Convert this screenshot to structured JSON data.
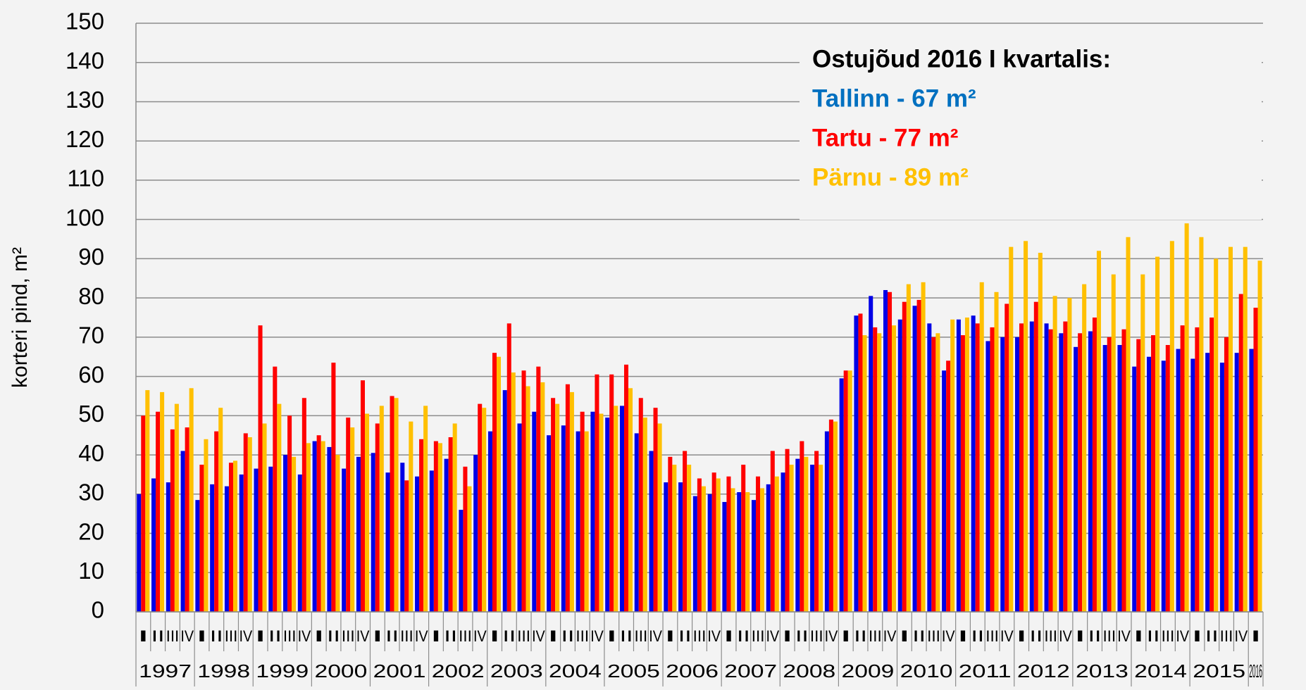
{
  "chart_data": {
    "type": "bar",
    "y_label": "korteri pind, m²",
    "annotations": [
      "Ostujõud 2016 I kvartalis:",
      "Tallinn - 67 m²",
      "Tartu - 77 m²",
      "Pärnu - 89 m²"
    ],
    "annotation_colors": [
      "#000000",
      "#0070c0",
      "#ff0000",
      "#ffc000"
    ],
    "categories": [
      "I",
      "II",
      "III",
      "IV",
      "I",
      "II",
      "III",
      "IV",
      "I",
      "II",
      "III",
      "IV",
      "I",
      "II",
      "III",
      "IV",
      "I",
      "II",
      "III",
      "IV",
      "I",
      "II",
      "III",
      "IV",
      "I",
      "II",
      "III",
      "IV",
      "I",
      "II",
      "III",
      "IV",
      "I",
      "II",
      "III",
      "IV",
      "I",
      "II",
      "III",
      "IV",
      "I",
      "II",
      "III",
      "IV",
      "I",
      "II",
      "III",
      "IV",
      "I",
      "II",
      "III",
      "IV",
      "I",
      "II",
      "III",
      "IV",
      "I",
      "II",
      "III",
      "IV",
      "I",
      "II",
      "III",
      "IV",
      "I",
      "II",
      "III",
      "IV",
      "I",
      "II",
      "III",
      "IV",
      "I",
      "II",
      "III",
      "IV",
      "I"
    ],
    "years": [
      "1997",
      "1998",
      "1999",
      "2000",
      "2001",
      "2002",
      "2003",
      "2004",
      "2005",
      "2006",
      "2007",
      "2008",
      "2009",
      "2010",
      "2011",
      "2012",
      "2013",
      "2014",
      "2015",
      "2016"
    ],
    "series": [
      {
        "color": "#0000e6",
        "values": [
          30,
          34,
          33,
          41,
          28.5,
          32.5,
          32,
          35,
          36.5,
          37,
          40,
          35,
          43.5,
          42,
          36.5,
          39.5,
          40.5,
          35.5,
          38,
          34.5,
          36,
          39,
          26,
          40,
          46,
          56.5,
          48,
          51,
          45,
          47.5,
          46,
          51,
          49.5,
          52.5,
          45.5,
          41,
          33,
          33,
          29.5,
          30,
          28,
          30.5,
          28.5,
          32.5,
          35.5,
          39,
          37.5,
          46,
          59.5,
          75.5,
          80.5,
          82,
          74.5,
          78,
          73.5,
          61.5,
          74.5,
          75.5,
          69,
          70,
          70,
          74,
          73.5,
          71,
          67.5,
          71.5,
          68,
          68,
          62.5,
          65,
          64,
          67,
          64.5,
          66,
          63.5,
          66,
          67
        ]
      },
      {
        "color": "#ff0000",
        "values": [
          50,
          51,
          46.5,
          47,
          37.5,
          46,
          38,
          45.5,
          73,
          62.5,
          50,
          54.5,
          45,
          63.5,
          49.5,
          59,
          48,
          55,
          33.5,
          44,
          43.5,
          44.5,
          37,
          53,
          66,
          73.5,
          61.5,
          62.5,
          54.5,
          58,
          51,
          60.5,
          60.5,
          63,
          54.5,
          52,
          39.5,
          41,
          34,
          35.5,
          34.5,
          37.5,
          34.5,
          41,
          41.5,
          43.5,
          41,
          49,
          61.5,
          76,
          72.5,
          81.5,
          79,
          79.5,
          70,
          64,
          70.5,
          73.5,
          72.5,
          78.5,
          73.5,
          79,
          72,
          74,
          71,
          75,
          70,
          72,
          69.5,
          70.5,
          68,
          73,
          72.5,
          75,
          70,
          81,
          77.5
        ]
      },
      {
        "color": "#ffc000",
        "values": [
          56.5,
          56,
          53,
          57,
          44,
          52,
          38.5,
          44.5,
          48,
          53,
          39.5,
          43,
          43.5,
          40,
          47,
          50.5,
          52.5,
          54.5,
          48.5,
          52.5,
          43,
          48,
          32,
          52,
          65,
          61,
          57.5,
          58.5,
          53,
          56,
          46,
          50.5,
          52.5,
          57,
          49.5,
          48,
          37.5,
          37.5,
          32,
          34,
          31.5,
          30.5,
          31.5,
          34.5,
          37.5,
          39.5,
          37.5,
          48.5,
          61.5,
          70.5,
          71,
          73,
          83.5,
          84,
          71,
          74.5,
          75,
          84,
          81.5,
          93,
          94.5,
          91.5,
          80.5,
          80,
          83.5,
          92,
          86,
          95.5,
          86,
          90.5,
          94.5,
          99,
          95.5,
          90,
          93,
          93,
          89.5
        ]
      }
    ],
    "ylim": [
      0,
      150
    ],
    "yticks": [
      0,
      10,
      20,
      30,
      40,
      50,
      60,
      70,
      80,
      90,
      100,
      110,
      120,
      130,
      140,
      150
    ],
    "grid": true
  }
}
